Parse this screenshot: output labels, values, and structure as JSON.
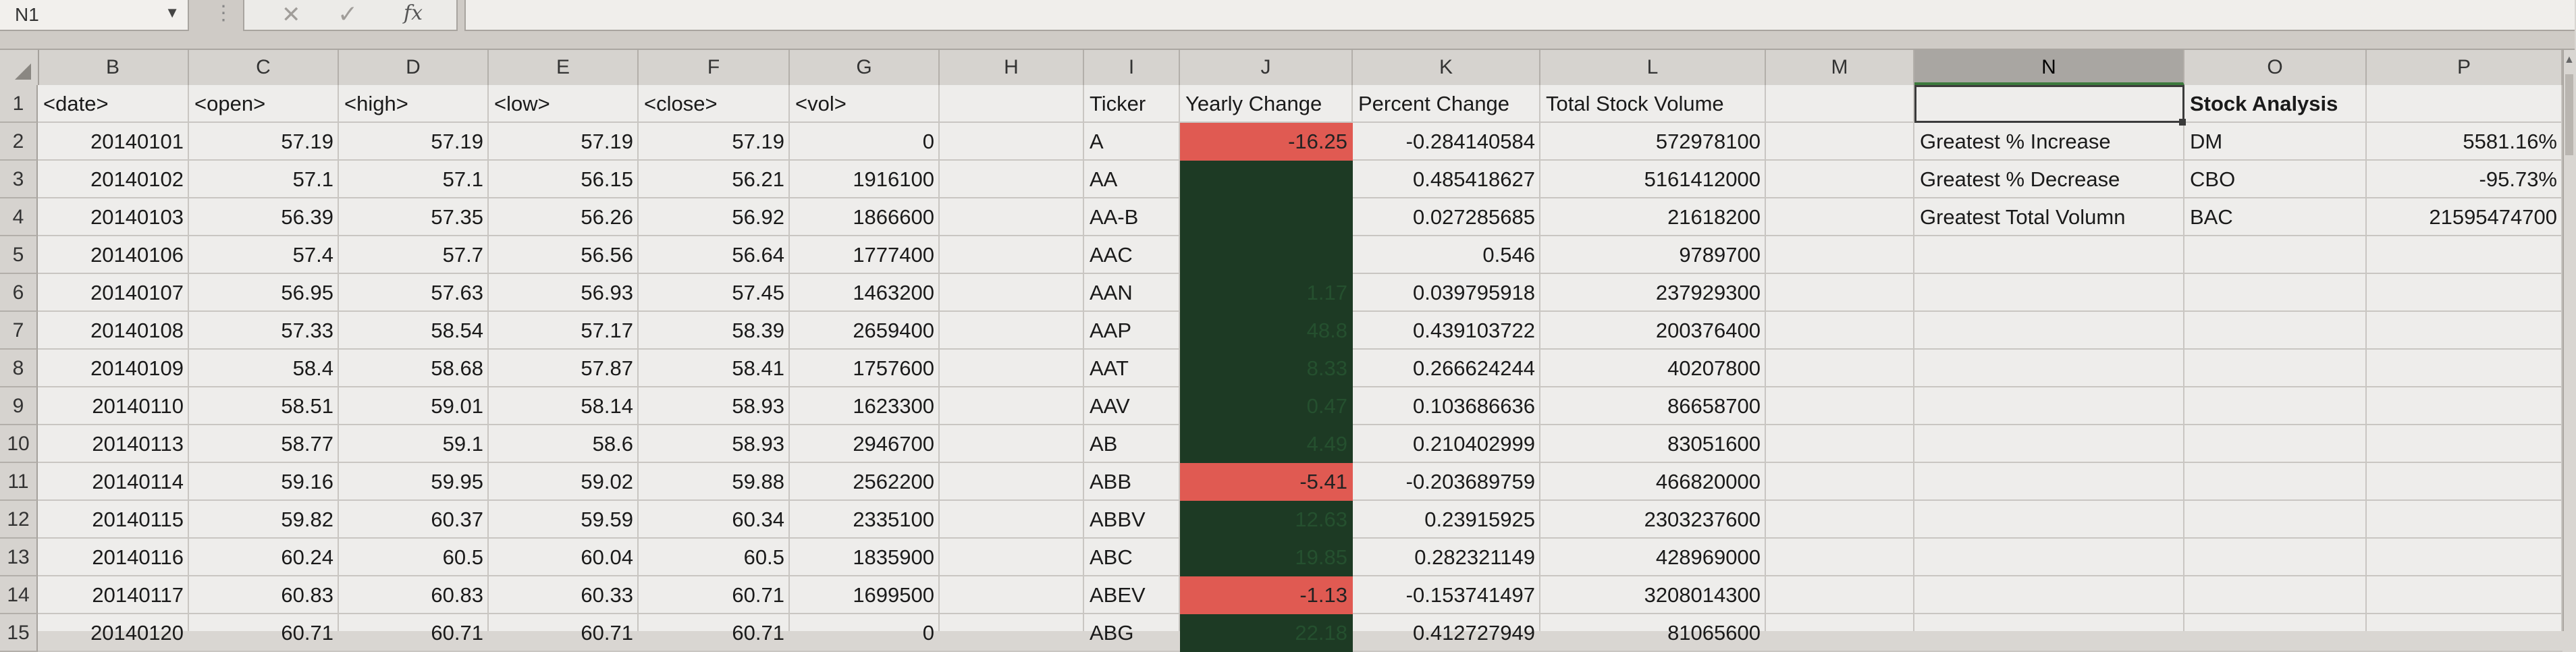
{
  "name_box": {
    "value": "N1"
  },
  "formula_bar": {
    "fx_label": "fx",
    "cancel_glyph": "✕",
    "enter_glyph": "✓",
    "dots": "⋮"
  },
  "columns": [
    "B",
    "C",
    "D",
    "E",
    "F",
    "G",
    "H",
    "I",
    "J",
    "K",
    "L",
    "M",
    "N",
    "O",
    "P"
  ],
  "selected_column": "N",
  "rows": [
    "1",
    "2",
    "3",
    "4",
    "5",
    "6",
    "7",
    "8",
    "9",
    "10",
    "11",
    "12",
    "13",
    "14",
    "15"
  ],
  "headers": {
    "date": "<date>",
    "open": "<open>",
    "high": "<high>",
    "low": "<low>",
    "close": "<close>",
    "vol": "<vol>",
    "ticker": "Ticker",
    "yearly_change": "Yearly Change",
    "percent_change": "Percent Change",
    "total_volume": "Total Stock Volume",
    "stock_analysis": "Stock Analysis"
  },
  "stock_rows": [
    [
      "20140101",
      "57.19",
      "57.19",
      "57.19",
      "57.19",
      "0"
    ],
    [
      "20140102",
      "57.1",
      "57.1",
      "56.15",
      "56.21",
      "1916100"
    ],
    [
      "20140103",
      "56.39",
      "57.35",
      "56.26",
      "56.92",
      "1866600"
    ],
    [
      "20140106",
      "57.4",
      "57.7",
      "56.56",
      "56.64",
      "1777400"
    ],
    [
      "20140107",
      "56.95",
      "57.63",
      "56.93",
      "57.45",
      "1463200"
    ],
    [
      "20140108",
      "57.33",
      "58.54",
      "57.17",
      "58.39",
      "2659400"
    ],
    [
      "20140109",
      "58.4",
      "58.68",
      "57.87",
      "58.41",
      "1757600"
    ],
    [
      "20140110",
      "58.51",
      "59.01",
      "58.14",
      "58.93",
      "1623300"
    ],
    [
      "20140113",
      "58.77",
      "59.1",
      "58.6",
      "58.93",
      "2946700"
    ],
    [
      "20140114",
      "59.16",
      "59.95",
      "59.02",
      "59.88",
      "2562200"
    ],
    [
      "20140115",
      "59.82",
      "60.37",
      "59.59",
      "60.34",
      "2335100"
    ],
    [
      "20140116",
      "60.24",
      "60.5",
      "60.04",
      "60.5",
      "1835900"
    ],
    [
      "20140117",
      "60.83",
      "60.83",
      "60.33",
      "60.71",
      "1699500"
    ],
    [
      "20140120",
      "60.71",
      "60.71",
      "60.71",
      "60.71",
      "0"
    ]
  ],
  "summary_rows": [
    {
      "ticker": "A",
      "yearly": "-16.25",
      "status": "negative",
      "percent": "-0.284140584",
      "volume": "572978100"
    },
    {
      "ticker": "AA",
      "yearly": "",
      "status": "positive",
      "percent": "0.485418627",
      "volume": "5161412000"
    },
    {
      "ticker": "AA-B",
      "yearly": "",
      "status": "positive",
      "percent": "0.027285685",
      "volume": "21618200"
    },
    {
      "ticker": "AAC",
      "yearly": "",
      "status": "positive",
      "percent": "0.546",
      "volume": "9789700"
    },
    {
      "ticker": "AAN",
      "yearly": "1.17",
      "status": "positive",
      "percent": "0.039795918",
      "volume": "237929300"
    },
    {
      "ticker": "AAP",
      "yearly": "48.8",
      "status": "positive",
      "percent": "0.439103722",
      "volume": "200376400"
    },
    {
      "ticker": "AAT",
      "yearly": "8.33",
      "status": "positive",
      "percent": "0.266624244",
      "volume": "40207800"
    },
    {
      "ticker": "AAV",
      "yearly": "0.47",
      "status": "positive",
      "percent": "0.103686636",
      "volume": "86658700"
    },
    {
      "ticker": "AB",
      "yearly": "4.49",
      "status": "positive",
      "percent": "0.210402999",
      "volume": "83051600"
    },
    {
      "ticker": "ABB",
      "yearly": "-5.41",
      "status": "negative",
      "percent": "-0.203689759",
      "volume": "466820000"
    },
    {
      "ticker": "ABBV",
      "yearly": "12.63",
      "status": "positive",
      "percent": "0.23915925",
      "volume": "2303237600"
    },
    {
      "ticker": "ABC",
      "yearly": "19.85",
      "status": "positive",
      "percent": "0.282321149",
      "volume": "428969000"
    },
    {
      "ticker": "ABEV",
      "yearly": "-1.13",
      "status": "negative",
      "percent": "-0.153741497",
      "volume": "3208014300"
    },
    {
      "ticker": "ABG",
      "yearly": "22.18",
      "status": "positive",
      "percent": "0.412727949",
      "volume": "81065600"
    }
  ],
  "analysis": [
    {
      "label": "Greatest % Increase",
      "ticker": "DM",
      "value": "5581.16%"
    },
    {
      "label": "Greatest % Decrease",
      "ticker": "CBO",
      "value": "-95.73%"
    },
    {
      "label": "Greatest Total Volumn",
      "ticker": "BAC",
      "value": "21595474700"
    }
  ],
  "colors": {
    "negative": "#e05a52",
    "positive": "#1d3a24",
    "grid": "#eeedeb",
    "header": "#d6d3cf"
  }
}
